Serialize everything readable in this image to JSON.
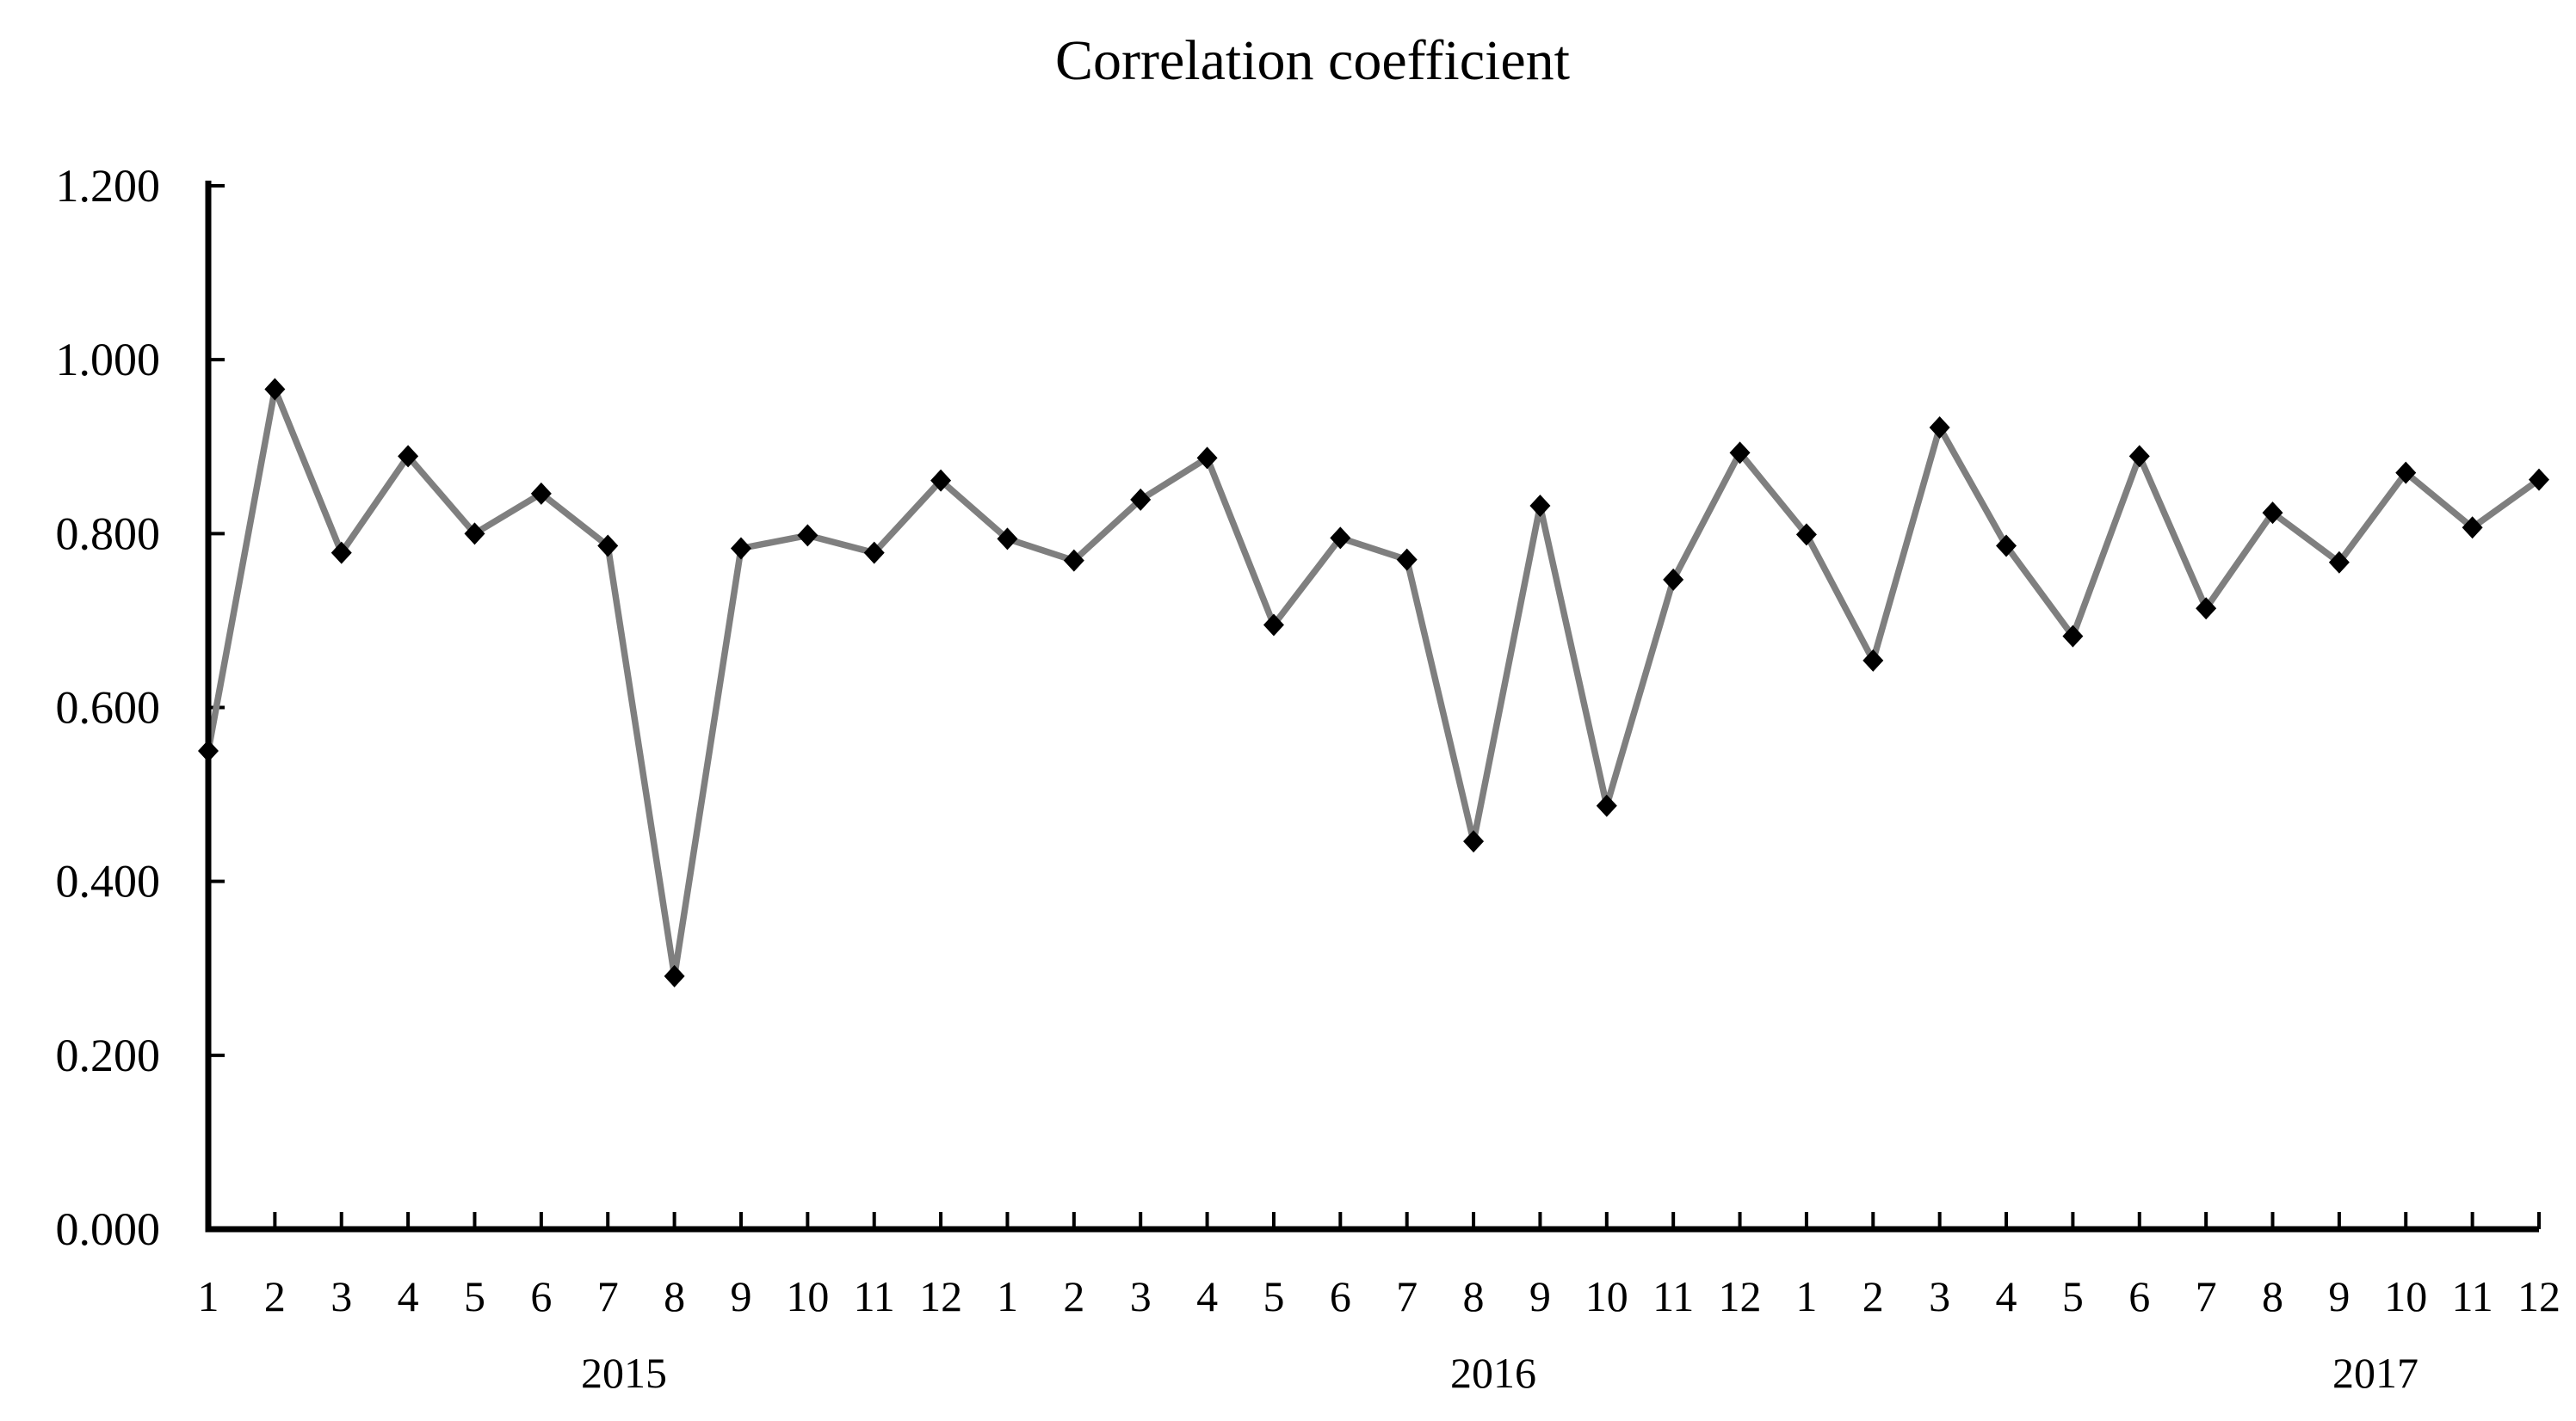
{
  "chart_data": {
    "type": "line",
    "title": "Correlation coefficient",
    "xlabel": "",
    "ylabel": "",
    "ylim": [
      0.0,
      1.2
    ],
    "y_tick_step": 0.2,
    "y_tick_labels": [
      "0.000",
      "0.200",
      "0.400",
      "0.600",
      "0.800",
      "1.000",
      "1.200"
    ],
    "month_labels": [
      "1",
      "2",
      "3",
      "4",
      "5",
      "6",
      "7",
      "8",
      "9",
      "10",
      "11",
      "12"
    ],
    "grid": "off",
    "legend": "none",
    "marker": "diamond",
    "colors": {
      "line": "#7f7f7f",
      "marker": "#000000",
      "axis": "#000000",
      "text": "#000000",
      "background": "#ffffff"
    },
    "series": [
      {
        "name": "Correlation coefficient",
        "groups": [
          {
            "year": "2015",
            "values": [
              0.55,
              0.966,
              0.778,
              0.889,
              0.8,
              0.846,
              0.786,
              0.291,
              0.783,
              0.798,
              0.778,
              0.861
            ]
          },
          {
            "year": "2016",
            "values": [
              0.794,
              0.769,
              0.839,
              0.887,
              0.695,
              0.795,
              0.77,
              0.446,
              0.832,
              0.487,
              0.747,
              0.893
            ]
          },
          {
            "year": "2017",
            "values": [
              0.799,
              0.654,
              0.922,
              0.786,
              0.682,
              0.889,
              0.714,
              0.824,
              0.767,
              0.87,
              0.807,
              0.862
            ]
          }
        ]
      }
    ]
  }
}
